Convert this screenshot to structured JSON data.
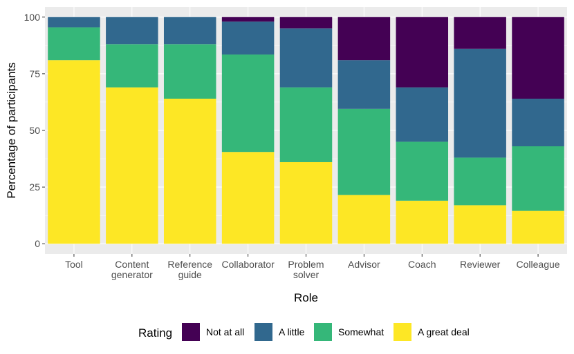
{
  "chart_data": {
    "type": "bar",
    "stacked": true,
    "xlabel": "Role",
    "ylabel": "Percentage of participants",
    "ylim": [
      0,
      100
    ],
    "yticks": [
      0,
      25,
      50,
      75,
      100
    ],
    "grid": true,
    "legend_position": "bottom",
    "legend_title": "Rating",
    "categories": [
      [
        "Tool"
      ],
      [
        "Content",
        "generator"
      ],
      [
        "Reference",
        "guide"
      ],
      [
        "Collaborator"
      ],
      [
        "Problem",
        "solver"
      ],
      [
        "Advisor"
      ],
      [
        "Coach"
      ],
      [
        "Reviewer"
      ],
      [
        "Colleague"
      ]
    ],
    "series": [
      {
        "name": "A great deal",
        "color": "#FDE725",
        "values": [
          81,
          69,
          64,
          40.5,
          36,
          21.5,
          19,
          17,
          14.5
        ]
      },
      {
        "name": "Somewhat",
        "color": "#35B779",
        "values": [
          14.5,
          19,
          24,
          43,
          33,
          38,
          26,
          21,
          28.5
        ]
      },
      {
        "name": "A little",
        "color": "#31688E",
        "values": [
          4.5,
          12,
          12,
          14.5,
          26,
          21.5,
          24,
          48,
          21
        ]
      },
      {
        "name": "Not at all",
        "color": "#440154",
        "values": [
          0,
          0,
          0,
          2,
          5,
          19,
          31,
          14,
          36
        ]
      }
    ],
    "legend_order": [
      "Not at all",
      "A little",
      "Somewhat",
      "A great deal"
    ]
  }
}
